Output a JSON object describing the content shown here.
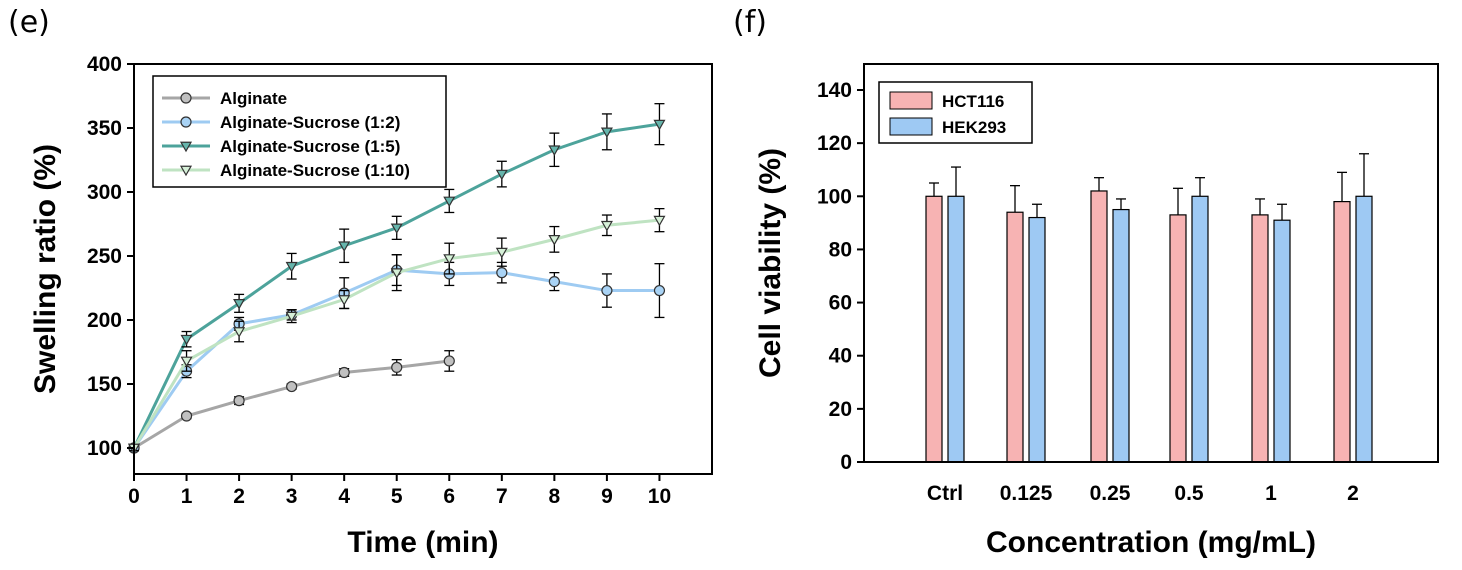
{
  "chart_data": [
    {
      "panel_label": "(e)",
      "type": "line",
      "xlabel": "Time (min)",
      "ylabel": "Swelling ratio (%)",
      "xlim": [
        0,
        11
      ],
      "ylim": [
        100,
        400
      ],
      "xticks": [
        0,
        1,
        2,
        3,
        4,
        5,
        6,
        7,
        8,
        9,
        10
      ],
      "yticks": [
        100,
        150,
        200,
        250,
        300,
        350,
        400
      ],
      "legend_position": "top-left",
      "series": [
        {
          "name": "Alginate",
          "marker": "circle",
          "line_color": "#a6a6a6",
          "fill_color": "#c0c0c0",
          "x": [
            0,
            1,
            2,
            3,
            4,
            5,
            6
          ],
          "y": [
            100,
            125,
            137,
            148,
            159,
            163,
            168
          ],
          "err": [
            2,
            2,
            3,
            2,
            3,
            6,
            8
          ]
        },
        {
          "name": "Alginate-Sucrose (1:2)",
          "marker": "circle",
          "line_color": "#9ecbf2",
          "fill_color": "#a9d3f5",
          "x": [
            0,
            1,
            2,
            3,
            4,
            5,
            6,
            7,
            8,
            9,
            10
          ],
          "y": [
            100,
            160,
            197,
            204,
            221,
            239,
            236,
            237,
            230,
            223,
            223
          ],
          "err": [
            2,
            5,
            5,
            4,
            12,
            12,
            9,
            8,
            7,
            13,
            21
          ]
        },
        {
          "name": "Alginate-Sucrose (1:5)",
          "marker": "triangle-down",
          "line_color": "#4da39b",
          "fill_color": "#66b5ac",
          "x": [
            0,
            1,
            2,
            3,
            4,
            5,
            6,
            7,
            8,
            9,
            10
          ],
          "y": [
            100,
            185,
            213,
            242,
            258,
            272,
            293,
            314,
            333,
            347,
            353
          ],
          "err": [
            2,
            6,
            7,
            10,
            13,
            9,
            9,
            10,
            13,
            14,
            16
          ]
        },
        {
          "name": "Alginate-Sucrose (1:10)",
          "marker": "triangle-down",
          "line_color": "#bfe3c2",
          "fill_color": "#d6f0d8",
          "x": [
            0,
            1,
            2,
            3,
            4,
            5,
            6,
            7,
            8,
            9,
            10
          ],
          "y": [
            100,
            168,
            191,
            203,
            216,
            237,
            248,
            253,
            263,
            274,
            278
          ],
          "err": [
            2,
            8,
            8,
            5,
            7,
            14,
            12,
            11,
            10,
            8,
            9
          ]
        }
      ]
    },
    {
      "panel_label": "(f)",
      "type": "bar",
      "xlabel": "Concentration (mg/mL)",
      "ylabel": "Cell viability (%)",
      "ylim": [
        0,
        150
      ],
      "yticks": [
        0,
        20,
        40,
        60,
        80,
        100,
        120,
        140
      ],
      "categories": [
        "Ctrl",
        "0.125",
        "0.25",
        "0.5",
        "1",
        "2"
      ],
      "legend_position": "top-left",
      "series": [
        {
          "name": "HCT116",
          "color": "#f7b3b3",
          "values": [
            100,
            94,
            102,
            93,
            93,
            98
          ],
          "err": [
            5,
            10,
            5,
            10,
            6,
            11
          ]
        },
        {
          "name": "HEK293",
          "color": "#9ec9f3",
          "values": [
            100,
            92,
            95,
            100,
            91,
            100
          ],
          "err": [
            11,
            5,
            4,
            7,
            6,
            16
          ]
        }
      ]
    }
  ]
}
